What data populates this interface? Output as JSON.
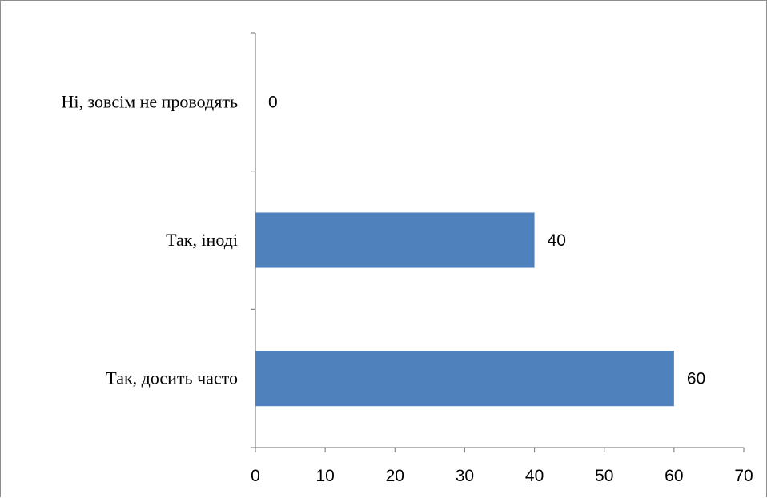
{
  "chart_data": {
    "type": "bar",
    "orientation": "horizontal",
    "categories": [
      "Ні, зовсім не проводять",
      "Так,  іноді",
      "Так,  досить часто"
    ],
    "values": [
      0,
      40,
      60
    ],
    "data_labels": [
      "0",
      "40",
      "60"
    ],
    "xlim": [
      0,
      70
    ],
    "x_ticks": [
      0,
      10,
      20,
      30,
      40,
      50,
      60,
      70
    ],
    "x_tick_labels": [
      "0",
      "10",
      "20",
      "30",
      "40",
      "50",
      "60",
      "70"
    ],
    "title": "",
    "xlabel": "",
    "ylabel": "",
    "grid": false,
    "legend": "none",
    "bar_color": "#4f81bd",
    "axis_color": "#868686"
  }
}
